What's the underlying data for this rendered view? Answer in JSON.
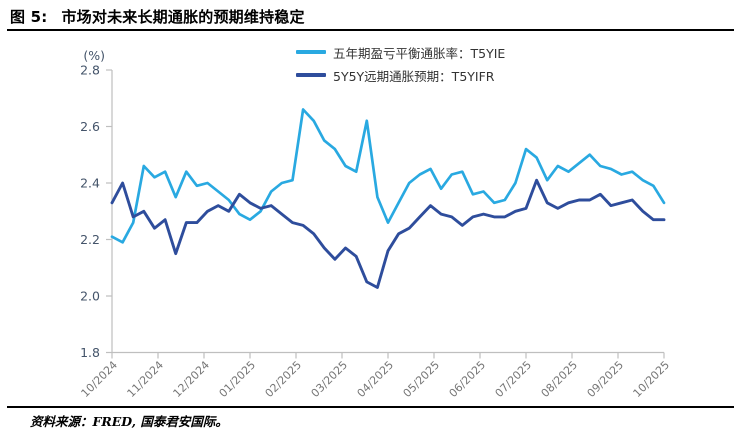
{
  "figure": {
    "label": "图 5:",
    "title": "市场对未来长期通胀的预期维持稳定"
  },
  "source_note": "资料来源：FRED, 国泰君安国际。",
  "colors": {
    "t5yie_line": "#29A9E1",
    "t5yifr_line": "#2E4D9C",
    "axis_line": "#BFBFBF",
    "y_tick_label": "#44546A",
    "x_tick_label": "#767676",
    "title_text": "#000000"
  },
  "chart_data": {
    "type": "line",
    "title": "",
    "unit_label": "(%)",
    "ylim": [
      1.8,
      2.8
    ],
    "y_ticks": [
      1.8,
      2.0,
      2.2,
      2.4,
      2.6,
      2.8
    ],
    "grid": false,
    "legend_position": "top-center",
    "x_tick_labels": [
      "10/2024",
      "11/2024",
      "12/2024",
      "01/2025",
      "02/2025",
      "03/2025",
      "04/2025",
      "05/2025",
      "06/2025",
      "07/2025",
      "08/2025",
      "09/2025",
      "10/2025"
    ],
    "x_range_note": "weekly samples, 10/2024 through 10/2025",
    "series": [
      {
        "name": "五年期盈亏平衡通胀率：T5YIE",
        "color": "#29A9E1",
        "values": [
          2.21,
          2.19,
          2.26,
          2.46,
          2.42,
          2.44,
          2.35,
          2.44,
          2.39,
          2.4,
          2.37,
          2.34,
          2.29,
          2.27,
          2.3,
          2.37,
          2.4,
          2.41,
          2.66,
          2.62,
          2.55,
          2.52,
          2.46,
          2.44,
          2.62,
          2.35,
          2.26,
          2.33,
          2.4,
          2.43,
          2.45,
          2.38,
          2.43,
          2.44,
          2.36,
          2.37,
          2.33,
          2.34,
          2.4,
          2.52,
          2.49,
          2.41,
          2.46,
          2.44,
          2.47,
          2.5,
          2.46,
          2.45,
          2.43,
          2.44,
          2.41,
          2.39,
          2.33
        ]
      },
      {
        "name": "5Y5Y远期通胀预期：T5YIFR",
        "color": "#2E4D9C",
        "values": [
          2.33,
          2.4,
          2.28,
          2.3,
          2.24,
          2.27,
          2.15,
          2.26,
          2.26,
          2.3,
          2.32,
          2.3,
          2.36,
          2.33,
          2.31,
          2.32,
          2.29,
          2.26,
          2.25,
          2.22,
          2.17,
          2.13,
          2.17,
          2.14,
          2.05,
          2.03,
          2.16,
          2.22,
          2.24,
          2.28,
          2.32,
          2.29,
          2.28,
          2.25,
          2.28,
          2.29,
          2.28,
          2.28,
          2.3,
          2.31,
          2.41,
          2.33,
          2.31,
          2.33,
          2.34,
          2.34,
          2.36,
          2.32,
          2.33,
          2.34,
          2.3,
          2.27,
          2.27
        ]
      }
    ]
  }
}
